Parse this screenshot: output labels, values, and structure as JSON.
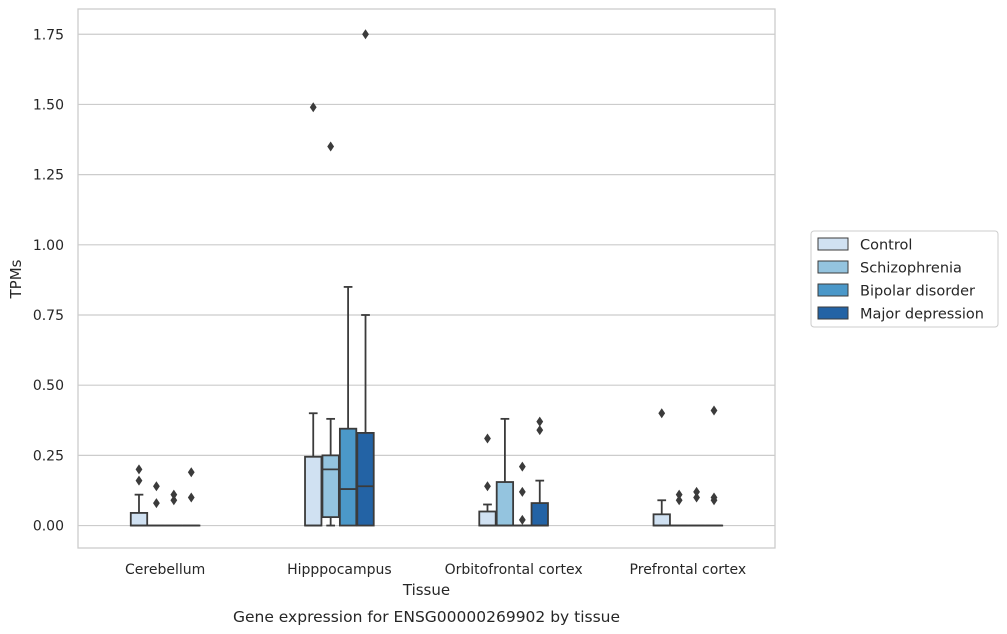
{
  "chart_data": {
    "type": "box",
    "caption": "Gene expression for ENSG00000269902 by tissue",
    "xlabel": "Tissue",
    "ylabel": "TPMs",
    "ylim": [
      -0.08,
      1.84
    ],
    "yticks": [
      0.0,
      0.25,
      0.5,
      0.75,
      1.0,
      1.25,
      1.5,
      1.75
    ],
    "ytick_labels": [
      "0.00",
      "0.25",
      "0.50",
      "0.75",
      "1.00",
      "1.25",
      "1.50",
      "1.75"
    ],
    "grid": "horizontal",
    "legend_position": "right",
    "categories": [
      "Cerebellum",
      "Hipppocampus",
      "Orbitofrontal cortex",
      "Prefrontal cortex"
    ],
    "series": [
      {
        "name": "Control",
        "color": "#d0e1f2",
        "boxes": [
          {
            "whislo": 0.0,
            "q1": 0.0,
            "med": 0.0,
            "q3": 0.045,
            "whishi": 0.11,
            "fliers": [
              0.16,
              0.2
            ]
          },
          {
            "whislo": 0.0,
            "q1": 0.0,
            "med": 0.0,
            "q3": 0.245,
            "whishi": 0.4,
            "fliers": [
              1.49
            ]
          },
          {
            "whislo": 0.0,
            "q1": 0.0,
            "med": 0.0,
            "q3": 0.05,
            "whishi": 0.075,
            "fliers": [
              0.14,
              0.31
            ]
          },
          {
            "whislo": 0.0,
            "q1": 0.0,
            "med": 0.0,
            "q3": 0.04,
            "whishi": 0.09,
            "fliers": [
              0.4
            ]
          }
        ]
      },
      {
        "name": "Schizophrenia",
        "color": "#94c4df",
        "boxes": [
          {
            "whislo": 0.0,
            "q1": 0.0,
            "med": 0.0,
            "q3": 0.0,
            "whishi": 0.0,
            "fliers": [
              0.08,
              0.14
            ]
          },
          {
            "whislo": 0.0,
            "q1": 0.03,
            "med": 0.2,
            "q3": 0.25,
            "whishi": 0.38,
            "fliers": [
              1.35
            ]
          },
          {
            "whislo": 0.0,
            "q1": 0.0,
            "med": 0.0,
            "q3": 0.155,
            "whishi": 0.38,
            "fliers": []
          },
          {
            "whislo": 0.0,
            "q1": 0.0,
            "med": 0.0,
            "q3": 0.0,
            "whishi": 0.0,
            "fliers": [
              0.09,
              0.11
            ]
          }
        ]
      },
      {
        "name": "Bipolar disorder",
        "color": "#4b98c9",
        "boxes": [
          {
            "whislo": 0.0,
            "q1": 0.0,
            "med": 0.0,
            "q3": 0.0,
            "whishi": 0.0,
            "fliers": [
              0.09,
              0.11
            ]
          },
          {
            "whislo": 0.0,
            "q1": 0.0,
            "med": 0.13,
            "q3": 0.345,
            "whishi": 0.85,
            "fliers": []
          },
          {
            "whislo": 0.0,
            "q1": 0.0,
            "med": 0.0,
            "q3": 0.0,
            "whishi": 0.0,
            "fliers": [
              0.02,
              0.12,
              0.21
            ]
          },
          {
            "whislo": 0.0,
            "q1": 0.0,
            "med": 0.0,
            "q3": 0.0,
            "whishi": 0.0,
            "fliers": [
              0.1,
              0.12
            ]
          }
        ]
      },
      {
        "name": "Major depression",
        "color": "#2363a5",
        "boxes": [
          {
            "whislo": 0.0,
            "q1": 0.0,
            "med": 0.0,
            "q3": 0.0,
            "whishi": 0.0,
            "fliers": [
              0.1,
              0.19
            ]
          },
          {
            "whislo": 0.0,
            "q1": 0.0,
            "med": 0.14,
            "q3": 0.33,
            "whishi": 0.75,
            "fliers": [
              1.75
            ]
          },
          {
            "whislo": 0.0,
            "q1": 0.0,
            "med": 0.0,
            "q3": 0.08,
            "whishi": 0.16,
            "fliers": [
              0.34,
              0.37
            ]
          },
          {
            "whislo": 0.0,
            "q1": 0.0,
            "med": 0.0,
            "q3": 0.0,
            "whishi": 0.0,
            "fliers": [
              0.09,
              0.1,
              0.41
            ]
          }
        ]
      }
    ]
  }
}
